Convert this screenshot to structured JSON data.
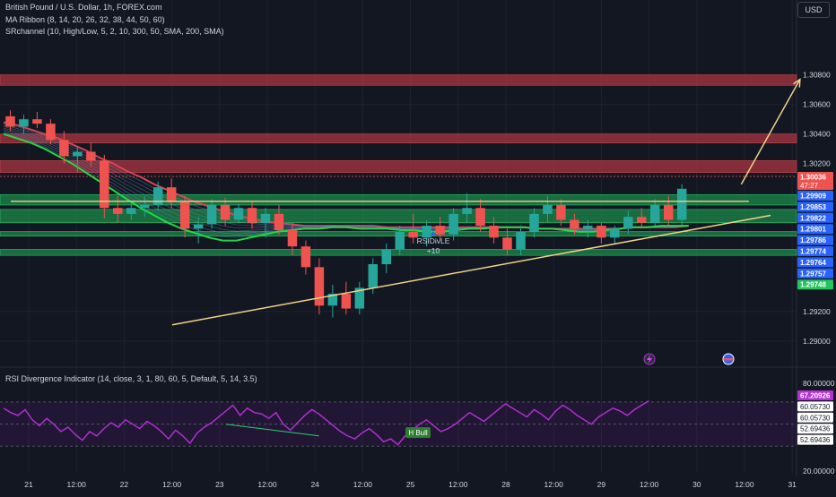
{
  "header": {
    "symbol": "British Pound / U.S. Dollar, 1h, FOREX.com",
    "indicator_1": "MA Ribbon (8, 14, 20, 26, 32, 38, 44, 50, 60)",
    "indicator_2": "SRchannel (10, High/Low, 5, 2, 10, 300, 50, SMA, 200, SMA)",
    "currency_button": "USD"
  },
  "rsi_panel": {
    "title": "RSI Divergence Indicator (14, close, 3, 1, 80, 60, 5, Default, 5, 14, 3.5)",
    "divergence_label": "H Bull"
  },
  "price_panel": {
    "countdown": "47:27",
    "signal_label": "RSIDivLE",
    "signal_value": "+10"
  },
  "colors": {
    "background": "#131722",
    "up_candle": "#26a69a",
    "down_candle": "#ef5350",
    "support_zone": "#1b8a4a",
    "resistance_zone": "#a8353f",
    "trendline": "#f0d28a",
    "rsi_line": "#b530d8",
    "ribbon_fast": "#22e04a",
    "ribbon_slow": "#e0455a"
  },
  "chart_data": [
    {
      "type": "candlestick",
      "name": "price",
      "y_ticks": [
        "1.30800",
        "1.30600",
        "1.30400",
        "1.30200",
        "1.29200",
        "1.29000"
      ],
      "ylim": [
        1.2886,
        1.3104
      ],
      "x_ticks": [
        "21",
        "12:00",
        "22",
        "12:00",
        "23",
        "12:00",
        "24",
        "12:00",
        "25",
        "12:00",
        "28",
        "12:00",
        "29",
        "12:00",
        "30",
        "12:00",
        "31"
      ],
      "price_labels": [
        {
          "text": "1.30036",
          "value": 1.30036,
          "color": "#ef5350"
        },
        {
          "text": "1.29909",
          "value": 1.29909,
          "color": "#2962ff"
        },
        {
          "text": "1.29853",
          "value": 1.29853,
          "color": "#2962ff"
        },
        {
          "text": "1.29822",
          "value": 1.29822,
          "color": "#2962ff"
        },
        {
          "text": "1.29801",
          "value": 1.29801,
          "color": "#2962ff"
        },
        {
          "text": "1.29786",
          "value": 1.29786,
          "color": "#2962ff"
        },
        {
          "text": "1.29774",
          "value": 1.29774,
          "color": "#2962ff"
        },
        {
          "text": "1.29764",
          "value": 1.29764,
          "color": "#2962ff"
        },
        {
          "text": "1.29757",
          "value": 1.29757,
          "color": "#2962ff"
        },
        {
          "text": "1.29748",
          "value": 1.29748,
          "color": "#22c55e"
        }
      ],
      "resistance_zones": [
        [
          1.3073,
          1.308
        ],
        [
          1.3034,
          1.304
        ],
        [
          1.3014,
          1.3022
        ]
      ],
      "support_zones": [
        [
          1.2992,
          1.2999
        ],
        [
          1.298,
          1.2989
        ],
        [
          1.2971,
          1.2974
        ],
        [
          1.2958,
          1.2962
        ]
      ],
      "horizontal_line": {
        "value": 1.29945,
        "from_x": 0.8,
        "to_x": 68.5
      },
      "ascending_trendline": {
        "from": [
          15.5,
          1.2911
        ],
        "to": [
          70.5,
          1.2985
        ]
      },
      "projection_arrow": {
        "from": [
          67.8,
          1.3006
        ],
        "to": [
          73.2,
          1.3077
        ]
      },
      "ribbon_fast_ma": [
        1.304,
        1.3037,
        1.3034,
        1.303,
        1.3025,
        1.302,
        1.3014,
        1.3008,
        1.3002,
        1.2996,
        1.299,
        1.2985,
        1.298,
        1.2976,
        1.2973,
        1.297,
        1.2968,
        1.2968,
        1.297,
        1.2972,
        1.2974,
        1.2975,
        1.2976,
        1.2976,
        1.2977,
        1.2977,
        1.2976,
        1.2976,
        1.2976,
        1.2975,
        1.2975,
        1.2974,
        1.2974,
        1.2975,
        1.2976,
        1.2976,
        1.2977,
        1.2977,
        1.2977,
        1.2976,
        1.2976,
        1.2975,
        1.2974,
        1.2974,
        1.2975,
        1.2976,
        1.2977,
        1.2977,
        1.2978,
        1.2978,
        1.2978
      ],
      "ribbon_slow_ma": [
        1.3048,
        1.3046,
        1.3043,
        1.304,
        1.3037,
        1.3033,
        1.3029,
        1.3024,
        1.302,
        1.3015,
        1.3011,
        1.3006,
        1.3002,
        1.2998,
        1.2994,
        1.2991,
        1.2988,
        1.2985,
        1.2983,
        1.2981,
        1.298,
        1.2979,
        1.2978,
        1.2978,
        1.2978,
        1.2978,
        1.2978,
        1.2978,
        1.2977,
        1.2977,
        1.2977,
        1.2977,
        1.2977,
        1.2977,
        1.2977,
        1.2977,
        1.2977,
        1.2977,
        1.2977,
        1.2976,
        1.2976,
        1.2976,
        1.2976,
        1.2976,
        1.2976,
        1.2976,
        1.2977,
        1.2977,
        1.2977,
        1.2977,
        1.2978
      ],
      "candles": [
        [
          1.3052,
          1.3056,
          1.3042,
          1.3045
        ],
        [
          1.3045,
          1.3053,
          1.304,
          1.305
        ],
        [
          1.305,
          1.3055,
          1.3044,
          1.3047
        ],
        [
          1.3047,
          1.305,
          1.3033,
          1.3036
        ],
        [
          1.3036,
          1.3042,
          1.302,
          1.3025
        ],
        [
          1.3025,
          1.3032,
          1.3014,
          1.3028
        ],
        [
          1.3028,
          1.3034,
          1.3018,
          1.3022
        ],
        [
          1.3022,
          1.3026,
          1.2983,
          1.299
        ],
        [
          1.299,
          1.2998,
          1.298,
          1.2986
        ],
        [
          1.2986,
          1.2995,
          1.2982,
          1.299
        ],
        [
          1.299,
          1.2998,
          1.2984,
          1.2992
        ],
        [
          1.2992,
          1.3008,
          1.2988,
          1.3004
        ],
        [
          1.3004,
          1.301,
          1.299,
          1.2994
        ],
        [
          1.2994,
          1.2998,
          1.297,
          1.2976
        ],
        [
          1.2976,
          1.2984,
          1.2966,
          1.2979
        ],
        [
          1.2979,
          1.2996,
          1.2976,
          1.2992
        ],
        [
          1.2992,
          1.2997,
          1.2978,
          1.2982
        ],
        [
          1.2982,
          1.2993,
          1.298,
          1.299
        ],
        [
          1.299,
          1.2994,
          1.2976,
          1.298
        ],
        [
          1.298,
          1.299,
          1.297,
          1.2986
        ],
        [
          1.2986,
          1.2992,
          1.2972,
          1.2975
        ],
        [
          1.2975,
          1.298,
          1.2958,
          1.2964
        ],
        [
          1.2964,
          1.2968,
          1.2945,
          1.295
        ],
        [
          1.295,
          1.2956,
          1.2918,
          1.2924
        ],
        [
          1.2924,
          1.2938,
          1.2916,
          1.2932
        ],
        [
          1.2932,
          1.294,
          1.2918,
          1.2922
        ],
        [
          1.2922,
          1.294,
          1.2918,
          1.2936
        ],
        [
          1.2936,
          1.2956,
          1.2932,
          1.2952
        ],
        [
          1.2952,
          1.2966,
          1.2946,
          1.2962
        ],
        [
          1.2962,
          1.2978,
          1.2958,
          1.2974
        ],
        [
          1.2974,
          1.2986,
          1.2966,
          1.297
        ],
        [
          1.297,
          1.2982,
          1.2964,
          1.2978
        ],
        [
          1.2978,
          1.2984,
          1.2968,
          1.2972
        ],
        [
          1.2972,
          1.299,
          1.2968,
          1.2986
        ],
        [
          1.2986,
          1.3,
          1.298,
          1.299
        ],
        [
          1.299,
          1.2996,
          1.2974,
          1.2978
        ],
        [
          1.2978,
          1.2984,
          1.2966,
          1.297
        ],
        [
          1.297,
          1.2976,
          1.2958,
          1.2962
        ],
        [
          1.2962,
          1.2978,
          1.2958,
          1.2974
        ],
        [
          1.2974,
          1.299,
          1.297,
          1.2986
        ],
        [
          1.2986,
          1.2998,
          1.298,
          1.2992
        ],
        [
          1.2992,
          1.2996,
          1.2978,
          1.2982
        ],
        [
          1.2982,
          1.2986,
          1.2972,
          1.2976
        ],
        [
          1.2976,
          1.2982,
          1.297,
          1.2978
        ],
        [
          1.2978,
          1.298,
          1.2966,
          1.297
        ],
        [
          1.297,
          1.2978,
          1.2966,
          1.2976
        ],
        [
          1.2976,
          1.2988,
          1.2972,
          1.2984
        ],
        [
          1.2984,
          1.299,
          1.2976,
          1.298
        ],
        [
          1.298,
          1.2996,
          1.2978,
          1.2992
        ],
        [
          1.2992,
          1.2998,
          1.2978,
          1.2982
        ],
        [
          1.2982,
          1.3006,
          1.2978,
          1.3003
        ]
      ]
    },
    {
      "type": "line",
      "name": "rsi",
      "y_ticks": [
        "80.00000",
        "20.00000"
      ],
      "ylim": [
        20,
        80
      ],
      "value_labels": [
        {
          "text": "67.20926",
          "value": 67.20926,
          "color": "#b530d8"
        },
        {
          "text": "60.05730",
          "value": 60.0573,
          "color": "#131722"
        },
        {
          "text": "60.05730",
          "value": 60.0573,
          "color": "#131722"
        },
        {
          "text": "52.69436",
          "value": 52.69436,
          "color": "#131722"
        },
        {
          "text": "52.69436",
          "value": 52.69436,
          "color": "#131722"
        }
      ],
      "overbought": 67.2,
      "oversold": 37.0,
      "values": [
        63,
        60,
        58,
        62,
        55,
        51,
        56,
        52,
        47,
        50,
        45,
        41,
        47,
        44,
        49,
        53,
        50,
        55,
        52,
        49,
        54,
        51,
        47,
        42,
        48,
        44,
        39,
        46,
        50,
        53,
        57,
        61,
        65,
        58,
        63,
        60,
        59,
        56,
        60,
        52,
        48,
        53,
        58,
        62,
        59,
        55,
        51,
        47,
        44,
        42,
        46,
        49,
        45,
        40,
        42,
        38,
        44,
        48,
        52,
        55,
        51,
        47,
        49,
        52,
        56,
        60,
        57,
        54,
        58,
        62,
        66,
        63,
        60,
        57,
        62,
        59,
        55,
        61,
        65,
        62,
        58,
        55,
        52,
        57,
        60,
        63,
        61,
        58,
        62,
        65,
        68
      ],
      "divergence": {
        "from": [
          31,
          52
        ],
        "to": [
          44,
          44
        ]
      }
    }
  ]
}
